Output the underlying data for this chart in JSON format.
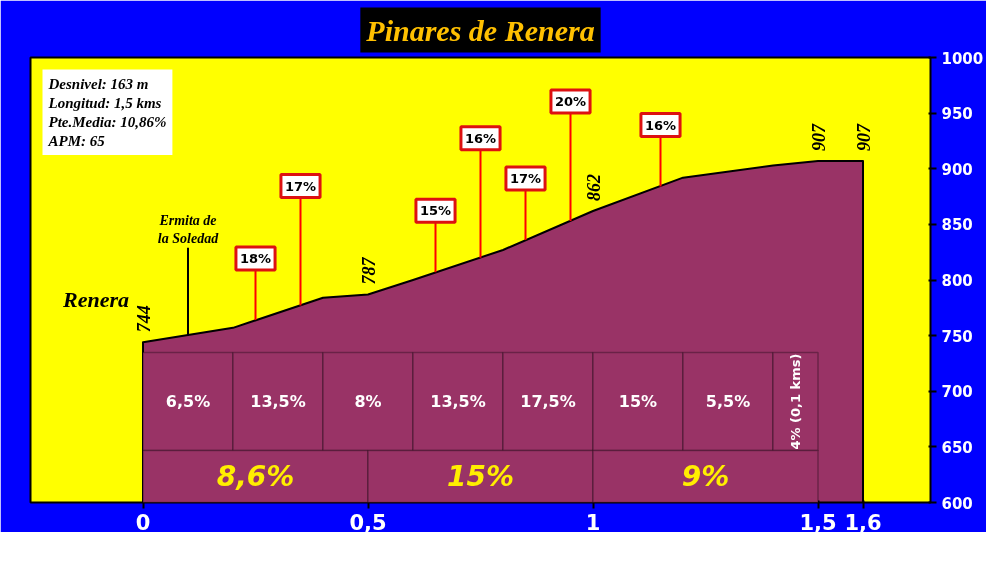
{
  "chart_data": {
    "type": "area",
    "title": "Pinares de Renera",
    "x": [
      0,
      0.2,
      0.4,
      0.5,
      0.6,
      0.8,
      1.0,
      1.2,
      1.4,
      1.5,
      1.6
    ],
    "values": [
      744,
      757,
      784,
      787,
      800,
      827,
      862,
      892,
      903,
      907,
      907
    ],
    "value_labels": [
      "744",
      null,
      null,
      "787",
      null,
      null,
      "862",
      null,
      null,
      "907",
      "907"
    ],
    "color": "#993366",
    "xlim": [
      -0.25,
      1.75
    ],
    "ylim": [
      600,
      1000
    ],
    "xticks": [
      0,
      {
        "value": 0.5,
        "label": "0,5"
      },
      1,
      {
        "value": 1.5,
        "label": "1,5"
      },
      {
        "value": 1.6,
        "label": "1,6"
      }
    ],
    "yticks": [
      600,
      650,
      700,
      750,
      800,
      850,
      900,
      950,
      1000
    ],
    "bands": [
      {
        "axis": "x",
        "from": 0,
        "to": 0.2,
        "label": "6,5%",
        "color": "#993366"
      },
      {
        "axis": "x",
        "from": 0.2,
        "to": 0.4,
        "label": "13,5%",
        "color": "#993366"
      },
      {
        "axis": "x",
        "from": 0.4,
        "to": 0.6,
        "label": "8%",
        "color": "#993366"
      },
      {
        "axis": "x",
        "from": 0.6,
        "to": 0.8,
        "label": "13,5%",
        "color": "#993366"
      },
      {
        "axis": "x",
        "from": 0.8,
        "to": 1.0,
        "label": "17,5%",
        "color": "#993366"
      },
      {
        "axis": "x",
        "from": 1.0,
        "to": 1.2,
        "label": "15%",
        "color": "#993366"
      },
      {
        "axis": "x",
        "from": 1.2,
        "to": 1.4,
        "label": "5,5%",
        "color": "#993366"
      },
      {
        "axis": "x",
        "from": 1.4,
        "to": 1.5,
        "label": "4% (0,1 kms)",
        "color": "#993366"
      },
      {
        "axis": "x",
        "from": 0,
        "to": 0.5,
        "label": "8,6%",
        "color": "#993366"
      },
      {
        "axis": "x",
        "from": 0.5,
        "to": 1.0,
        "label": "15%",
        "color": "#993366"
      },
      {
        "axis": "x",
        "from": 1.0,
        "to": 1.5,
        "label": "9%",
        "color": "#993366"
      }
    ],
    "annotations": [
      "Desnivel: 163 m",
      "Longitud: 1,5 kms",
      "Pte.Media: 10,86%",
      "APM: 65",
      {
        "text": "Renera",
        "x": 0,
        "y": 744
      },
      {
        "text": "Ermita de la Soledad",
        "x": 0.1,
        "y": 750
      },
      {
        "text": "18%",
        "x": 0.25,
        "y": 764
      },
      {
        "text": "17%",
        "x": 0.35,
        "y": 777
      },
      {
        "text": "15%",
        "x": 0.65,
        "y": 807
      },
      {
        "text": "16%",
        "x": 0.75,
        "y": 820
      },
      {
        "text": "17%",
        "x": 0.85,
        "y": 836
      },
      {
        "text": "20%",
        "x": 0.95,
        "y": 853
      },
      {
        "text": "16%",
        "x": 1.15,
        "y": 884
      }
    ]
  }
}
